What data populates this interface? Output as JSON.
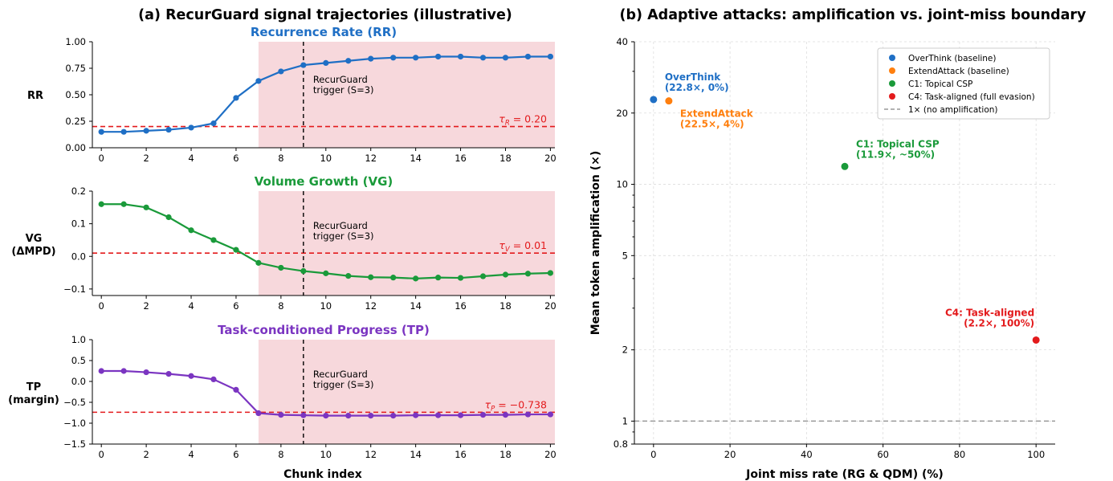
{
  "panel_a": {
    "title": "(a) RecurGuard signal trajectories (illustrative)",
    "xlabel": "Chunk index"
  },
  "panel_b": {
    "title": "(b) Adaptive attacks: amplification vs. joint-miss boundary"
  },
  "chart_data": [
    {
      "type": "line",
      "title": "Recurrence Rate (RR)",
      "ylabel": "RR",
      "xlabel": "",
      "x": [
        0,
        1,
        2,
        3,
        4,
        5,
        6,
        7,
        8,
        9,
        10,
        11,
        12,
        13,
        14,
        15,
        16,
        17,
        18,
        19,
        20
      ],
      "series": [
        {
          "values": [
            0.15,
            0.15,
            0.16,
            0.17,
            0.19,
            0.23,
            0.47,
            0.63,
            0.72,
            0.78,
            0.8,
            0.82,
            0.84,
            0.85,
            0.85,
            0.86,
            0.86,
            0.85,
            0.85,
            0.86,
            0.86
          ],
          "color": "#1f6fc5"
        }
      ],
      "xlim": [
        -0.4,
        20.2
      ],
      "ylim": [
        0,
        1.0
      ],
      "xticks": [
        0,
        2,
        4,
        6,
        8,
        10,
        12,
        14,
        16,
        18,
        20
      ],
      "yticks": [
        0,
        0.25,
        0.5,
        0.75,
        1.0
      ],
      "ytick_labels": [
        "0.00",
        "0.25",
        "0.50",
        "0.75",
        "1.00"
      ],
      "threshold": {
        "value": 0.2,
        "label": "τR = 0.20",
        "color": "#e31a1c"
      },
      "shaded_region": [
        7,
        20.2
      ],
      "trigger": {
        "x": 9,
        "label_line1": "RecurGuard",
        "label_line2": "trigger (S=3)"
      },
      "title_color": "#1f6fc5"
    },
    {
      "type": "line",
      "title": "Volume Growth (VG)",
      "ylabel": "VG",
      "ylabel2": "(ΔMPD)",
      "xlabel": "",
      "x": [
        0,
        1,
        2,
        3,
        4,
        5,
        6,
        7,
        8,
        9,
        10,
        11,
        12,
        13,
        14,
        15,
        16,
        17,
        18,
        19,
        20
      ],
      "series": [
        {
          "values": [
            0.16,
            0.16,
            0.15,
            0.12,
            0.08,
            0.05,
            0.02,
            -0.02,
            -0.035,
            -0.045,
            -0.052,
            -0.06,
            -0.064,
            -0.065,
            -0.068,
            -0.065,
            -0.066,
            -0.061,
            -0.056,
            -0.053,
            -0.051
          ],
          "color": "#1a9a3a"
        }
      ],
      "xlim": [
        -0.4,
        20.2
      ],
      "ylim": [
        -0.12,
        0.2
      ],
      "xticks": [
        0,
        2,
        4,
        6,
        8,
        10,
        12,
        14,
        16,
        18,
        20
      ],
      "yticks": [
        -0.1,
        0.0,
        0.1,
        0.2
      ],
      "ytick_labels": [
        "−0.1",
        "0.0",
        "0.1",
        "0.2"
      ],
      "threshold": {
        "value": 0.01,
        "label": "τV = 0.01",
        "color": "#e31a1c"
      },
      "shaded_region": [
        7,
        20.2
      ],
      "trigger": {
        "x": 9,
        "label_line1": "RecurGuard",
        "label_line2": "trigger (S=3)"
      },
      "title_color": "#1a9a3a"
    },
    {
      "type": "line",
      "title": "Task-conditioned Progress (TP)",
      "ylabel": "TP",
      "ylabel2": "(margin)",
      "xlabel": "Chunk index",
      "x": [
        0,
        1,
        2,
        3,
        4,
        5,
        6,
        7,
        8,
        9,
        10,
        11,
        12,
        13,
        14,
        15,
        16,
        17,
        18,
        19,
        20
      ],
      "series": [
        {
          "values": [
            0.25,
            0.25,
            0.22,
            0.18,
            0.13,
            0.05,
            -0.2,
            -0.76,
            -0.8,
            -0.81,
            -0.82,
            -0.82,
            -0.82,
            -0.82,
            -0.81,
            -0.81,
            -0.81,
            -0.8,
            -0.8,
            -0.79,
            -0.79
          ],
          "color": "#7b35c1"
        }
      ],
      "xlim": [
        -0.4,
        20.2
      ],
      "ylim": [
        -1.5,
        1.0
      ],
      "xticks": [
        0,
        2,
        4,
        6,
        8,
        10,
        12,
        14,
        16,
        18,
        20
      ],
      "yticks": [
        -1.5,
        -1.0,
        -0.5,
        0.0,
        0.5,
        1.0
      ],
      "ytick_labels": [
        "−1.5",
        "−1.0",
        "−0.5",
        "0.0",
        "0.5",
        "1.0"
      ],
      "threshold": {
        "value": -0.738,
        "label": "τP = −0.738",
        "color": "#e31a1c"
      },
      "shaded_region": [
        7,
        20.2
      ],
      "trigger": {
        "x": 9,
        "label_line1": "RecurGuard",
        "label_line2": "trigger (S=3)"
      },
      "title_color": "#7b35c1"
    },
    {
      "type": "scatter",
      "title": "(b) Adaptive attacks: amplification vs. joint-miss boundary",
      "xlabel": "Joint miss rate (RG & QDM) (%)",
      "ylabel": "Mean token amplification (×)",
      "xlim": [
        -5,
        105
      ],
      "ylim": [
        0.8,
        40
      ],
      "yscale": "log",
      "xticks": [
        0,
        20,
        40,
        60,
        80,
        100
      ],
      "yticks": [
        0.8,
        1,
        2,
        5,
        10,
        20,
        40
      ],
      "ytick_labels": [
        "0.8",
        "1",
        "2",
        "5",
        "10",
        "20",
        "40"
      ],
      "grid": true,
      "legend_position": "top-right",
      "series": [
        {
          "name": "OverThink (baseline)",
          "x": 0,
          "y": 22.8,
          "color": "#1f6fc5",
          "label_line1": "OverThink",
          "label_line2": "(22.8×, 0%)"
        },
        {
          "name": "ExtendAttack (baseline)",
          "x": 4,
          "y": 22.5,
          "color": "#ff7f0e",
          "label_line1": "ExtendAttack",
          "label_line2": "(22.5×, 4%)"
        },
        {
          "name": "C1: Topical CSP",
          "x": 50,
          "y": 11.9,
          "color": "#1a9a3a",
          "label_line1": "C1: Topical CSP",
          "label_line2": "(11.9×, ~50%)"
        },
        {
          "name": "C4: Task-aligned (full evasion)",
          "x": 100,
          "y": 2.2,
          "color": "#e31a1c",
          "label_line1": "C4: Task-aligned",
          "label_line2": "(2.2×, 100%)"
        }
      ],
      "reference_line": {
        "y": 1,
        "label": "1× (no amplification)",
        "color": "#999999"
      }
    }
  ]
}
